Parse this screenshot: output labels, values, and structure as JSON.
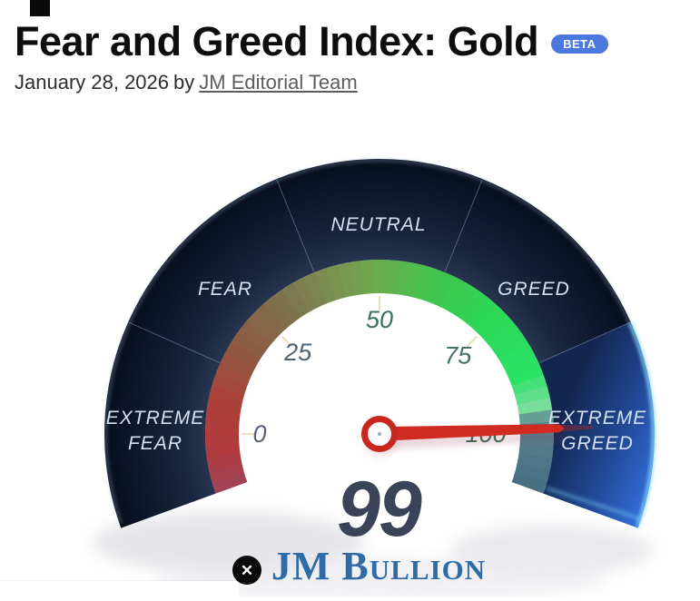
{
  "header": {
    "title": "Fear and Greed Index: Gold",
    "beta_badge": "BETA",
    "beta_color": "#4b78de"
  },
  "byline": {
    "date": "January 28, 2026",
    "connector": "by",
    "author": "JM Editorial Team"
  },
  "overlay": {
    "close_icon": "✕"
  },
  "chart_data": {
    "type": "gauge",
    "title": "Fear and Greed Index: Gold",
    "min": 0,
    "max": 100,
    "value": 99,
    "value_display": "99",
    "current_zone": "EXTREME GREED",
    "zones": [
      {
        "label": "EXTREME FEAR",
        "lines": [
          "EXTREME",
          "FEAR"
        ],
        "range": [
          0,
          20
        ],
        "active": false
      },
      {
        "label": "FEAR",
        "lines": [
          "FEAR"
        ],
        "range": [
          20,
          40
        ],
        "active": false
      },
      {
        "label": "NEUTRAL",
        "lines": [
          "NEUTRAL"
        ],
        "range": [
          40,
          60
        ],
        "active": false
      },
      {
        "label": "GREED",
        "lines": [
          "GREED"
        ],
        "range": [
          60,
          80
        ],
        "active": false
      },
      {
        "label": "EXTREME GREED",
        "lines": [
          "EXTREME",
          "GREED"
        ],
        "range": [
          80,
          100
        ],
        "active": true
      }
    ],
    "ticks": [
      {
        "value": 0,
        "label": "0",
        "color": "#5a6176"
      },
      {
        "value": 25,
        "label": "25",
        "color": "#4e6274"
      },
      {
        "value": 50,
        "label": "50",
        "color": "#3f7163"
      },
      {
        "value": 75,
        "label": "75",
        "color": "#457168"
      },
      {
        "value": 100,
        "label": "100",
        "color": "#3f6e55"
      }
    ],
    "band_stops": [
      {
        "angle": 200,
        "color": "#a04358"
      },
      {
        "angle": 186,
        "color": "#b13a3f"
      },
      {
        "angle": 168,
        "color": "#ac4038"
      },
      {
        "angle": 148,
        "color": "#8f5a44"
      },
      {
        "angle": 128,
        "color": "#7e6f4d"
      },
      {
        "angle": 108,
        "color": "#7b8f50"
      },
      {
        "angle": 92,
        "color": "#6fa94f"
      },
      {
        "angle": 72,
        "color": "#44c24d"
      },
      {
        "angle": 48,
        "color": "#2dd757"
      },
      {
        "angle": 22,
        "color": "#2ae366"
      },
      {
        "angle": 10,
        "color": "#79dd9b"
      },
      {
        "angle": 4,
        "color": "#5b8292"
      },
      {
        "angle": -20,
        "color": "#476e81"
      }
    ],
    "colors": {
      "needle": "#cf2b20",
      "hub_ring": "#c9271d",
      "hub_fill": "#fbfbfd",
      "hub_dot": "#9fb4c4",
      "tick_mark": "#e8d6ae",
      "zone_label": "#d3e0f2",
      "value_text": "#3a4358",
      "logo": "#2e6ba7",
      "ring_dark_inner": "#2a3854",
      "ring_dark_outer": "#060b16",
      "active_inner": "#13264f",
      "active_outer": "#3068cf",
      "ring_divider": "#9fb6d8",
      "active_glow": "#86e0ff",
      "rim_light": "#a9c6ec"
    },
    "branding": {
      "logo_text": "JM Bullion"
    },
    "layout_hints": {
      "start_angle_deg": 200,
      "end_angle_deg": -20,
      "value_angle_span": [
        180,
        0
      ],
      "legend": "none",
      "grid": "off"
    }
  }
}
